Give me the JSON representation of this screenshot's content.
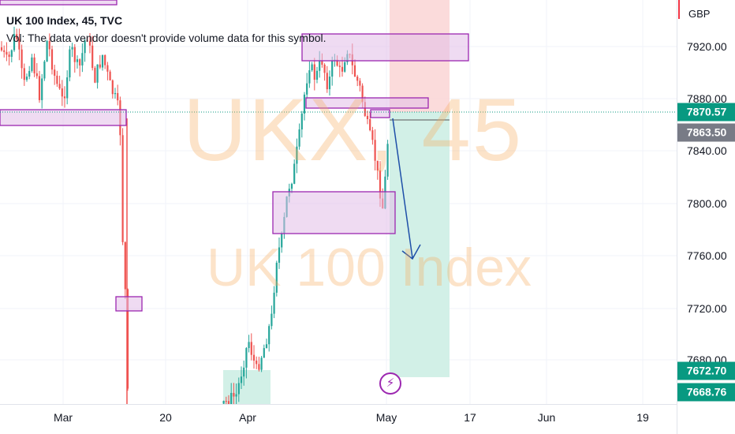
{
  "legend": {
    "title": "UK 100 Index, 45, TVC",
    "vol": "Vol: The data vendor doesn't provide volume data for this symbol."
  },
  "watermark": {
    "ticker": "UKX, 45",
    "name": "UK 100 Index"
  },
  "price_axis": {
    "currency": "GBP",
    "ticks": [
      "7920.00",
      "7880.00",
      "7840.00",
      "7800.00",
      "7760.00",
      "7720.00",
      "7680.00"
    ]
  },
  "badges": {
    "last_price": "7870.57",
    "entry_price": "7863.50",
    "target_price": "7672.70",
    "low_price": "7668.76"
  },
  "time_axis": {
    "ticks": [
      "Mar",
      "20",
      "Apr",
      "17",
      "May",
      "17",
      "Jun",
      "19"
    ]
  },
  "colors": {
    "up": "#26a69a",
    "down": "#ef5350",
    "zone_fill": "#e1bee7",
    "zone_border": "#9c27b0",
    "stop_fill": "#fbd7d7",
    "target_fill": "#cdeee4",
    "arrow": "#1e4fa8",
    "last_badge": "#089981",
    "entry_badge": "#787b86"
  },
  "icons": {
    "event_marker": "lightning-bolt-icon"
  }
}
